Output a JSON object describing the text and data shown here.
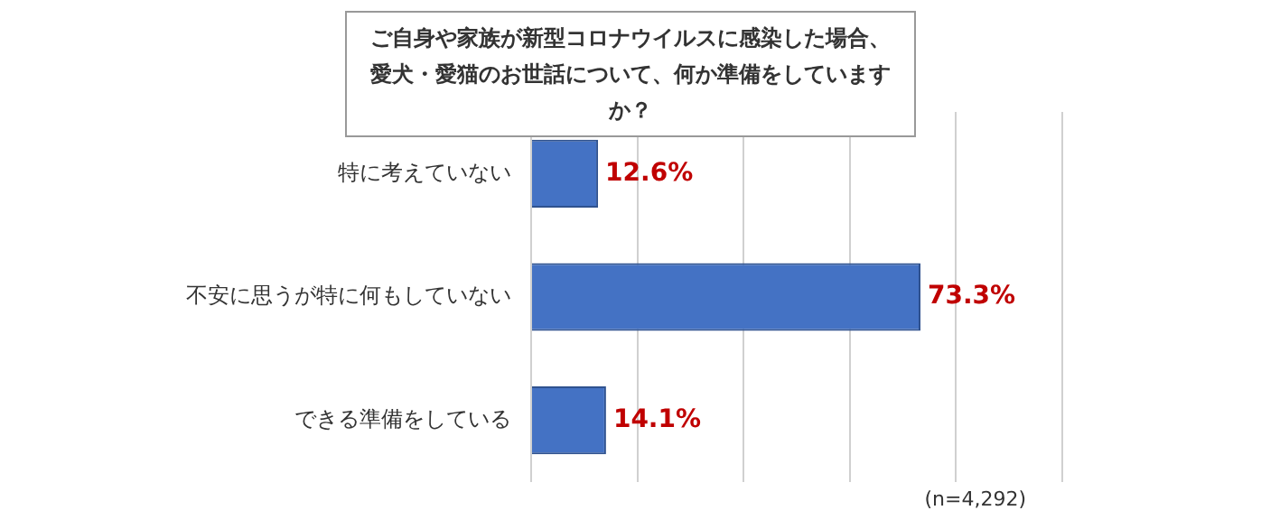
{
  "chart_data": {
    "type": "bar",
    "orientation": "horizontal",
    "title": "ご自身や家族が新型コロナウイルスに感染した場合、愛犬・愛猫のお世話について、何か準備をしていますか？",
    "categories": [
      "特に考えていない",
      "不安に思うが特に何もしていない",
      "できる準備をしている"
    ],
    "values": [
      12.6,
      73.3,
      14.1
    ],
    "color": "#4472c4",
    "value_labels": [
      "12.6%",
      "73.3%",
      "14.1%"
    ],
    "xlim": [
      0,
      100
    ],
    "grid": "x",
    "tick_labels": "y",
    "legend": false,
    "annotations": [
      "(n=4,292)"
    ]
  }
}
